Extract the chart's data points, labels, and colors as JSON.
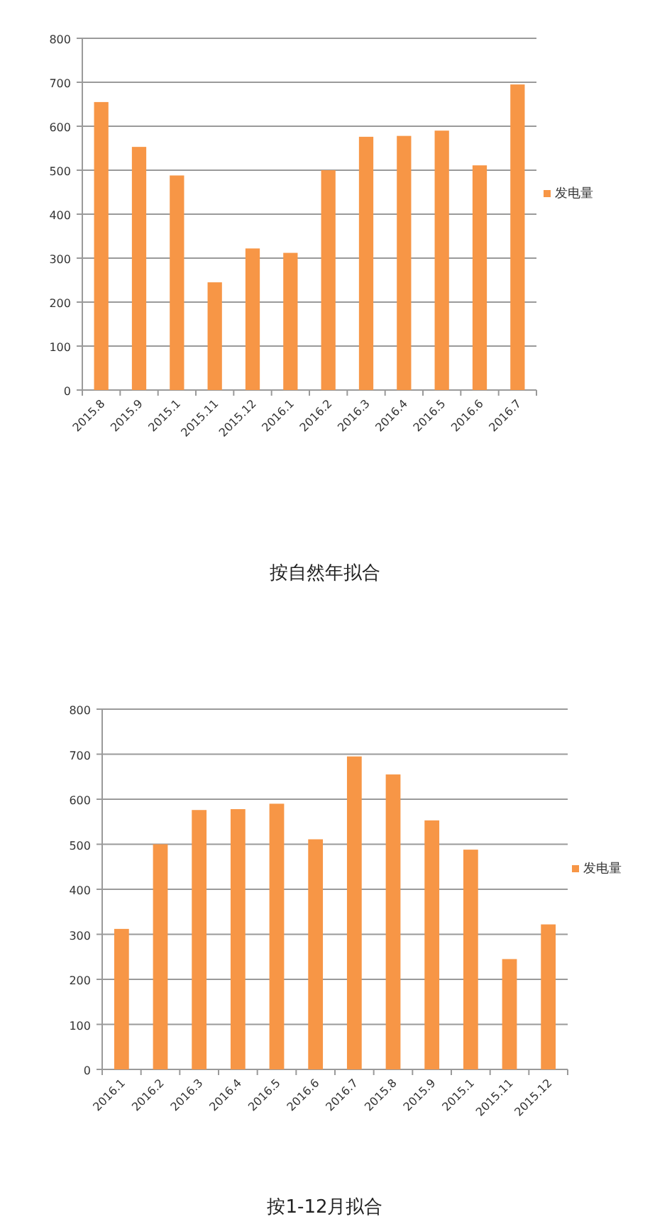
{
  "chart_data": [
    {
      "type": "bar",
      "categories": [
        "2015.8",
        "2015.9",
        "2015.1",
        "2015.11",
        "2015.12",
        "2016.1",
        "2016.2",
        "2016.3",
        "2016.4",
        "2016.5",
        "2016.6",
        "2016.7"
      ],
      "series": [
        {
          "name": "发电量",
          "color": "#f79646",
          "values": [
            655,
            553,
            488,
            245,
            322,
            312,
            500,
            576,
            578,
            590,
            511,
            695
          ]
        }
      ],
      "ylim": [
        0,
        800
      ],
      "yticks": [
        0,
        100,
        200,
        300,
        400,
        500,
        600,
        700,
        800
      ],
      "grid": "y",
      "legend": "right",
      "annotations": [
        "按自然年拟合"
      ]
    },
    {
      "type": "bar",
      "categories": [
        "2016.1",
        "2016.2",
        "2016.3",
        "2016.4",
        "2016.5",
        "2016.6",
        "2016.7",
        "2015.8",
        "2015.9",
        "2015.1",
        "2015.11",
        "2015.12"
      ],
      "series": [
        {
          "name": "发电量",
          "color": "#f79646",
          "values": [
            312,
            500,
            576,
            578,
            590,
            511,
            695,
            655,
            553,
            488,
            245,
            322
          ]
        }
      ],
      "ylim": [
        0,
        800
      ],
      "yticks": [
        0,
        100,
        200,
        300,
        400,
        500,
        600,
        700,
        800
      ],
      "grid": "y",
      "legend": "right",
      "annotations": [
        "按1-12月拟合"
      ]
    }
  ]
}
